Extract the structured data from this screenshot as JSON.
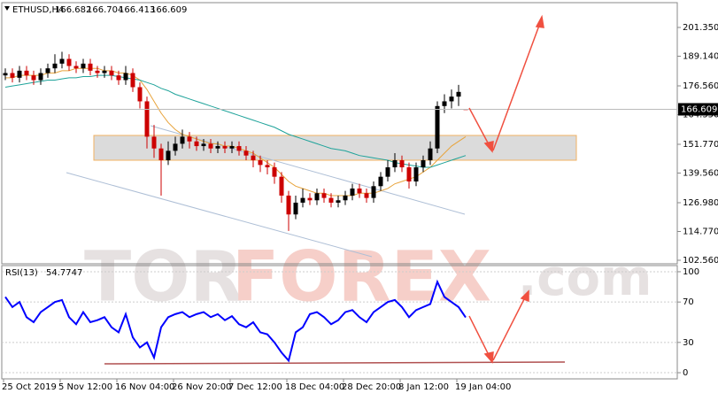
{
  "watermark": {
    "part1": "TOR",
    "part2": "FOREX",
    "part3": ".com"
  },
  "chart_data": [
    {
      "type": "candlestick",
      "symbol": "ETHUSD,H4",
      "up_color": "#000000",
      "down_color": "#cc0000",
      "open": [
        181,
        182,
        180,
        183,
        181,
        179,
        182,
        184,
        186,
        188,
        185,
        184,
        186,
        183,
        182,
        183,
        181,
        179,
        182,
        176,
        170,
        155,
        150,
        145,
        149,
        152,
        155,
        153,
        151,
        152,
        150,
        151,
        150,
        151,
        149,
        147,
        145,
        143,
        142,
        138,
        130,
        122,
        127,
        129,
        128,
        131,
        129,
        127,
        128,
        130,
        133,
        131,
        129,
        134,
        138,
        142,
        145,
        142,
        136,
        142,
        145,
        150,
        168,
        170,
        172,
        166.682
      ],
      "high": [
        184,
        184,
        185,
        185,
        183,
        184,
        186,
        190,
        191,
        190,
        187,
        188,
        188,
        185,
        185,
        185,
        183,
        185,
        184,
        178,
        172,
        160,
        152,
        153,
        155,
        158,
        157,
        155,
        154,
        154,
        153,
        153,
        153,
        153,
        151,
        149,
        147,
        145,
        144,
        140,
        132,
        130,
        133,
        131,
        133,
        133,
        131,
        130,
        132,
        135,
        135,
        133,
        136,
        140,
        145,
        148,
        147,
        144,
        144,
        147,
        153,
        170,
        173,
        175,
        177,
        166.704
      ],
      "low": [
        179,
        178,
        178,
        179,
        177,
        177,
        180,
        182,
        184,
        183,
        182,
        182,
        181,
        180,
        180,
        179,
        177,
        177,
        174,
        167,
        150,
        146,
        130,
        143,
        147,
        150,
        150,
        149,
        149,
        148,
        148,
        148,
        148,
        147,
        145,
        142,
        140,
        139,
        135,
        127,
        115,
        120,
        125,
        126,
        126,
        127,
        125,
        125,
        126,
        128,
        129,
        127,
        127,
        132,
        136,
        140,
        140,
        133,
        134,
        140,
        143,
        148,
        165,
        167,
        168,
        166.413
      ],
      "close": [
        182,
        180,
        183,
        181,
        179,
        182,
        184,
        186,
        188,
        185,
        184,
        186,
        183,
        182,
        183,
        181,
        179,
        182,
        176,
        170,
        155,
        150,
        145,
        149,
        152,
        155,
        153,
        151,
        152,
        150,
        151,
        150,
        151,
        149,
        147,
        145,
        143,
        142,
        138,
        130,
        122,
        127,
        129,
        128,
        131,
        129,
        127,
        128,
        130,
        133,
        131,
        129,
        134,
        138,
        142,
        145,
        142,
        136,
        142,
        145,
        150,
        168,
        170,
        172,
        174,
        166.609
      ],
      "series": [
        {
          "color": "#e8a33a",
          "values": [
            180,
            180,
            181,
            181,
            181,
            181,
            182,
            182,
            183,
            183,
            184,
            184,
            184,
            184,
            183,
            183,
            182,
            182,
            181,
            179,
            175,
            170,
            165,
            161,
            158,
            156,
            155,
            154,
            153,
            152,
            152,
            151,
            151,
            150,
            149,
            148,
            146,
            144,
            142,
            139,
            136,
            134,
            133,
            132,
            131,
            131,
            130,
            130,
            130,
            130,
            131,
            131,
            131,
            132,
            133,
            135,
            136,
            137,
            138,
            140,
            142,
            145,
            148,
            151,
            153,
            155
          ]
        },
        {
          "color": "#1fa39a",
          "values": [
            176,
            176.5,
            177,
            177.5,
            178,
            178.5,
            179,
            179,
            179.5,
            180,
            180,
            180.5,
            180.5,
            181,
            181,
            181,
            180.5,
            180,
            179.5,
            179,
            178,
            177,
            175.5,
            174.5,
            173,
            172,
            171,
            170,
            169,
            168,
            167,
            166,
            165,
            164,
            163,
            162,
            161,
            160,
            159,
            157.5,
            156,
            155,
            154,
            153,
            152,
            151,
            150,
            149.5,
            149,
            148,
            147,
            146.5,
            146,
            145.5,
            145,
            144,
            143.5,
            143,
            142.5,
            142,
            142,
            143,
            144,
            145,
            146,
            147
          ]
        }
      ],
      "ylim": [
        101.06,
        211.87
      ],
      "yticks": [
        {
          "value": 102.56,
          "label": "102.560"
        },
        {
          "value": 114.77,
          "label": "114.770"
        },
        {
          "value": 126.98,
          "label": "126.980"
        },
        {
          "value": 139.56,
          "label": "139.560"
        },
        {
          "value": 151.77,
          "label": "151.770"
        },
        {
          "value": 164.35,
          "label": "164.350"
        },
        {
          "value": 176.56,
          "label": "176.560"
        },
        {
          "value": 189.14,
          "label": "189.140"
        },
        {
          "value": 201.35,
          "label": "201.350"
        }
      ]
    },
    {
      "type": "line",
      "title": "RSI(13)",
      "color": "#0000ff",
      "categories": [
        "25 Oct 2019",
        null,
        null,
        null,
        null,
        null,
        null,
        null,
        "5 Nov 12:00",
        null,
        null,
        null,
        null,
        null,
        null,
        null,
        "16 Nov 04:00",
        null,
        null,
        null,
        null,
        null,
        null,
        null,
        "26 Nov 20:00",
        null,
        null,
        null,
        null,
        null,
        null,
        null,
        "7 Dec 12:00",
        null,
        null,
        null,
        null,
        null,
        null,
        null,
        "18 Dec 04:00",
        null,
        null,
        null,
        null,
        null,
        null,
        null,
        "28 Dec 20:00",
        null,
        null,
        null,
        null,
        null,
        null,
        null,
        "8 Jan 12:00",
        null,
        null,
        null,
        null,
        null,
        null,
        null,
        "19 Jan 04:00",
        null
      ],
      "values": [
        75,
        65,
        70,
        55,
        50,
        60,
        65,
        70,
        72,
        55,
        48,
        60,
        50,
        52,
        55,
        45,
        40,
        58,
        35,
        25,
        30,
        15,
        45,
        55,
        58,
        60,
        55,
        58,
        60,
        55,
        58,
        52,
        56,
        48,
        45,
        50,
        40,
        38,
        30,
        20,
        12,
        40,
        45,
        58,
        60,
        55,
        48,
        52,
        60,
        62,
        55,
        50,
        60,
        65,
        70,
        72,
        65,
        55,
        62,
        65,
        68,
        90,
        75,
        70,
        65,
        54.7747
      ],
      "ylim": [
        -6.1,
        106.1
      ],
      "yticks": [
        0,
        30,
        70,
        100
      ],
      "grid": true
    }
  ]
}
